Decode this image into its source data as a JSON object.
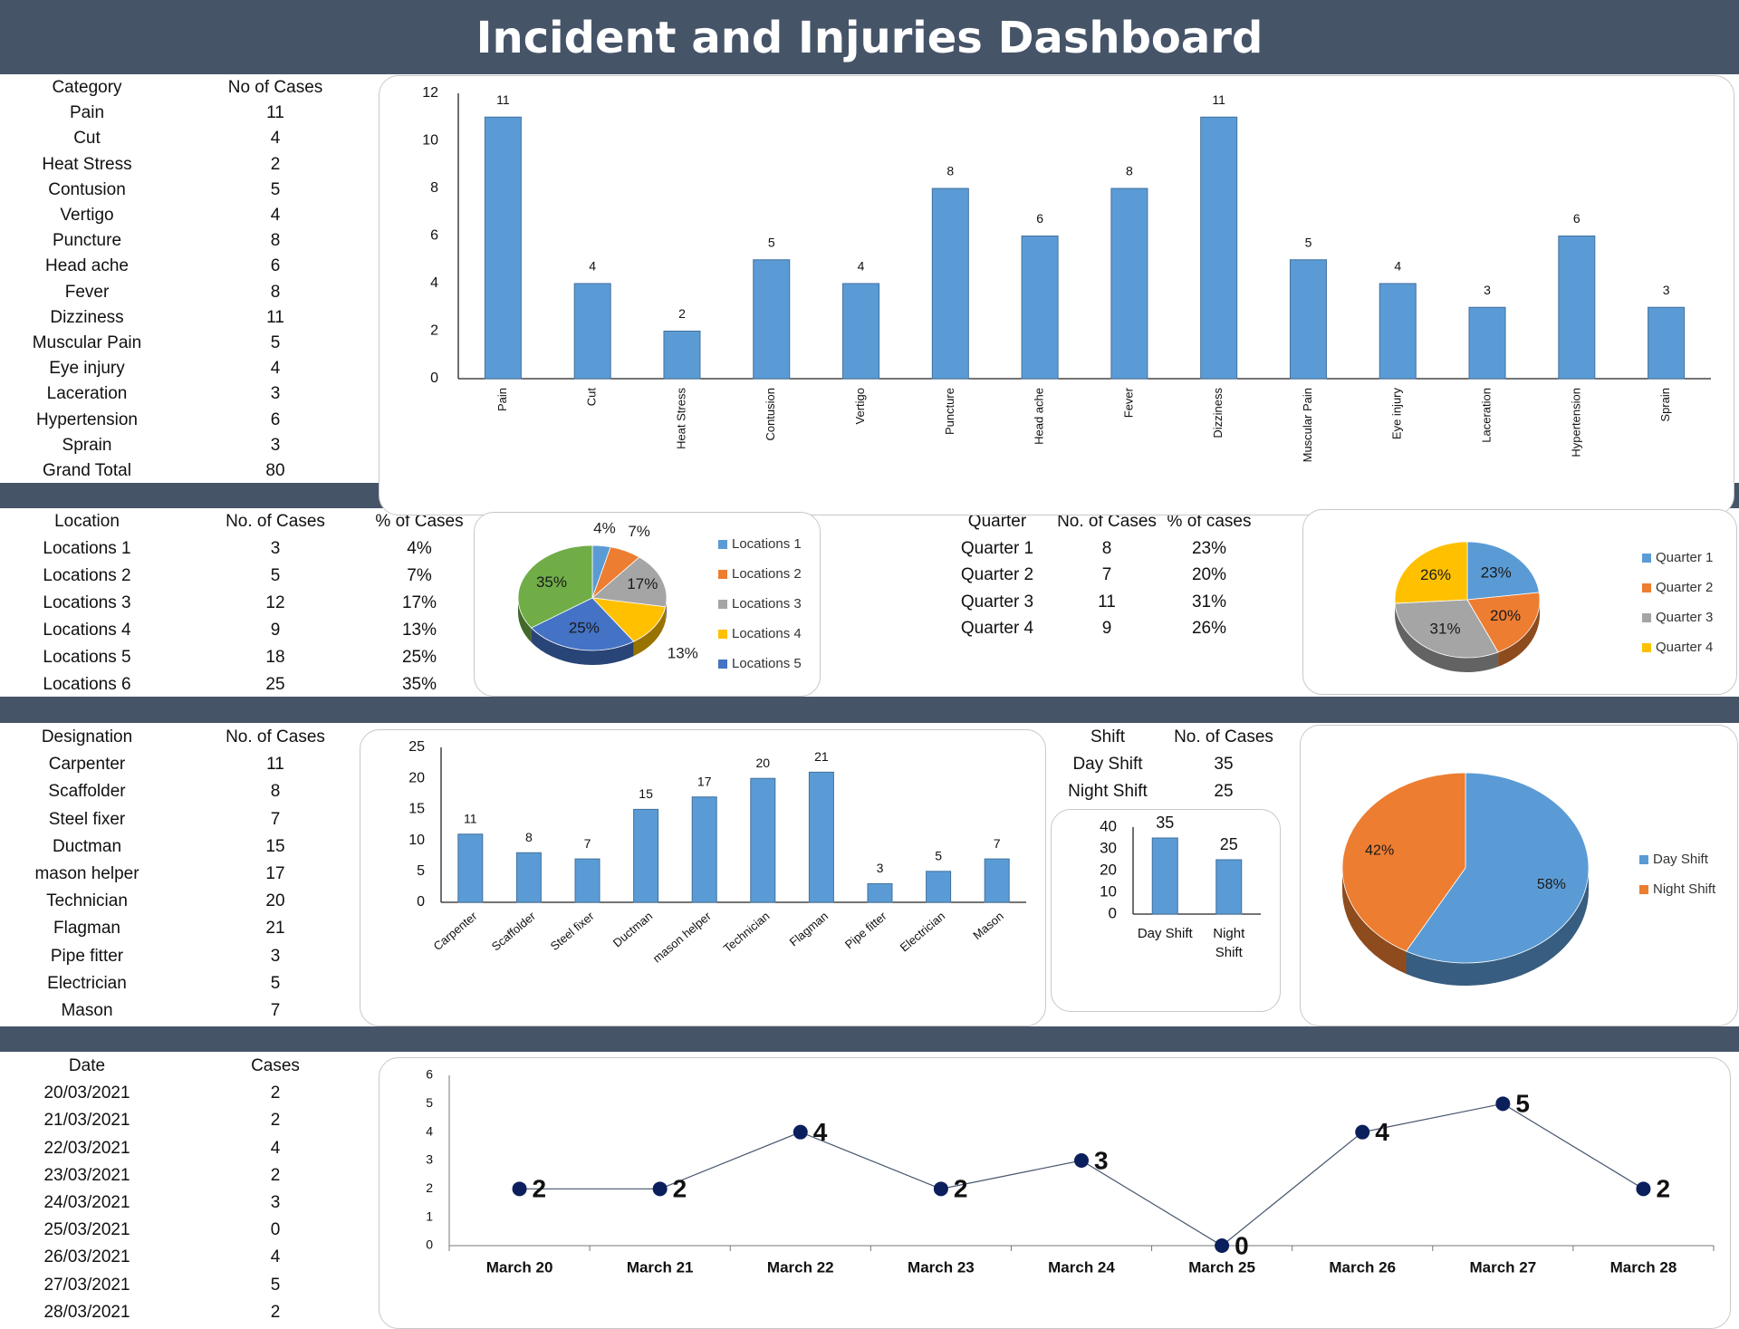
{
  "title": "Incident and Injuries Dashboard",
  "colors": {
    "header": "#465468",
    "bar": "#5b9bd5",
    "line_marker": "#0b1f5c",
    "line": "#44546a"
  },
  "tables": {
    "category": {
      "headers": [
        "Category",
        "No of Cases"
      ],
      "rows": [
        [
          "Pain",
          "11"
        ],
        [
          "Cut",
          "4"
        ],
        [
          "Heat Stress",
          "2"
        ],
        [
          "Contusion",
          "5"
        ],
        [
          "Vertigo",
          "4"
        ],
        [
          "Puncture",
          "8"
        ],
        [
          "Head ache",
          "6"
        ],
        [
          "Fever",
          "8"
        ],
        [
          "Dizziness",
          "11"
        ],
        [
          "Muscular Pain",
          "5"
        ],
        [
          "Eye injury",
          "4"
        ],
        [
          "Laceration",
          "3"
        ],
        [
          "Hypertension",
          "6"
        ],
        [
          "Sprain",
          "3"
        ],
        [
          "Grand Total",
          "80"
        ]
      ]
    },
    "location": {
      "headers": [
        "Location",
        "No. of Cases",
        "% of Cases"
      ],
      "rows": [
        [
          "Locations 1",
          "3",
          "4%"
        ],
        [
          "Locations 2",
          "5",
          "7%"
        ],
        [
          "Locations 3",
          "12",
          "17%"
        ],
        [
          "Locations 4",
          "9",
          "13%"
        ],
        [
          "Locations 5",
          "18",
          "25%"
        ],
        [
          "Locations 6",
          "25",
          "35%"
        ]
      ]
    },
    "quarter": {
      "headers": [
        "Quarter",
        "No. of Cases",
        "% of cases"
      ],
      "rows": [
        [
          "Quarter 1",
          "8",
          "23%"
        ],
        [
          "Quarter 2",
          "7",
          "20%"
        ],
        [
          "Quarter 3",
          "11",
          "31%"
        ],
        [
          "Quarter 4",
          "9",
          "26%"
        ]
      ]
    },
    "designation": {
      "headers": [
        "Designation",
        "No. of Cases"
      ],
      "rows": [
        [
          "Carpenter",
          "11"
        ],
        [
          "Scaffolder",
          "8"
        ],
        [
          "Steel fixer",
          "7"
        ],
        [
          "Ductman",
          "15"
        ],
        [
          "mason helper",
          "17"
        ],
        [
          "Technician",
          "20"
        ],
        [
          "Flagman",
          "21"
        ],
        [
          "Pipe fitter",
          "3"
        ],
        [
          "Electrician",
          "5"
        ],
        [
          "Mason",
          "7"
        ]
      ]
    },
    "shift": {
      "headers": [
        "Shift",
        "No. of Cases"
      ],
      "rows": [
        [
          "Day Shift",
          "35"
        ],
        [
          "Night Shift",
          "25"
        ]
      ]
    },
    "date": {
      "headers": [
        "Date",
        "Cases"
      ],
      "rows": [
        [
          "20/03/2021",
          "2"
        ],
        [
          "21/03/2021",
          "2"
        ],
        [
          "22/03/2021",
          "4"
        ],
        [
          "23/03/2021",
          "2"
        ],
        [
          "24/03/2021",
          "3"
        ],
        [
          "25/03/2021",
          "0"
        ],
        [
          "26/03/2021",
          "4"
        ],
        [
          "27/03/2021",
          "5"
        ],
        [
          "28/03/2021",
          "2"
        ]
      ]
    }
  },
  "chart_data": [
    {
      "id": "category-bar",
      "type": "bar",
      "categories": [
        "Pain",
        "Cut",
        "Heat Stress",
        "Contusion",
        "Vertigo",
        "Puncture",
        "Head ache",
        "Fever",
        "Dizziness",
        "Muscular Pain",
        "Eye injury",
        "Laceration",
        "Hypertension",
        "Sprain"
      ],
      "values": [
        11,
        4,
        2,
        5,
        4,
        8,
        6,
        8,
        11,
        5,
        4,
        3,
        6,
        3
      ],
      "ylim": [
        0,
        12
      ],
      "yticks": [
        "0",
        "2",
        "4",
        "6",
        "8",
        "10",
        "12"
      ],
      "data_labels": true,
      "grid": false
    },
    {
      "id": "location-pie",
      "type": "pie",
      "style": "3d",
      "categories": [
        "Locations 1",
        "Locations 2",
        "Locations 3",
        "Locations 4",
        "Locations 5",
        "Locations 6"
      ],
      "values": [
        4,
        7,
        17,
        13,
        25,
        35
      ],
      "labels": [
        "4%",
        "7%",
        "17%",
        "13%",
        "25%",
        "35%"
      ],
      "colors": [
        "#5b9bd5",
        "#ed7d31",
        "#a5a5a5",
        "#ffc000",
        "#4472c4",
        "#70ad47"
      ],
      "legend": [
        "Locations 1",
        "Locations 2",
        "Locations 3",
        "Locations 4",
        "Locations 5"
      ],
      "legend_position": "right"
    },
    {
      "id": "quarter-pie",
      "type": "pie",
      "style": "3d",
      "categories": [
        "Quarter 1",
        "Quarter 2",
        "Quarter 3",
        "Quarter 4"
      ],
      "values": [
        23,
        20,
        31,
        26
      ],
      "labels": [
        "23%",
        "20%",
        "31%",
        "26%"
      ],
      "colors": [
        "#5b9bd5",
        "#ed7d31",
        "#a5a5a5",
        "#ffc000"
      ],
      "legend": [
        "Quarter 1",
        "Quarter 2",
        "Quarter 3",
        "Quarter 4"
      ],
      "legend_position": "right"
    },
    {
      "id": "designation-bar",
      "type": "bar",
      "categories": [
        "Carpenter",
        "Scaffolder",
        "Steel fixer",
        "Ductman",
        "mason helper",
        "Technician",
        "Flagman",
        "Pipe fitter",
        "Electrician",
        "Mason"
      ],
      "values": [
        11,
        8,
        7,
        15,
        17,
        20,
        21,
        3,
        5,
        7
      ],
      "ylim": [
        0,
        25
      ],
      "yticks": [
        "0",
        "5",
        "10",
        "15",
        "20",
        "25"
      ],
      "data_labels": true,
      "grid": false
    },
    {
      "id": "shift-bar",
      "type": "bar",
      "categories": [
        "Day Shift",
        "Night Shift"
      ],
      "values": [
        35,
        25
      ],
      "ylim": [
        0,
        40
      ],
      "yticks": [
        "0",
        "10",
        "20",
        "30",
        "40"
      ],
      "data_labels": true,
      "grid": false
    },
    {
      "id": "shift-pie",
      "type": "pie",
      "style": "3d",
      "categories": [
        "Day Shift",
        "Night Shift"
      ],
      "values": [
        58,
        42
      ],
      "labels": [
        "58%",
        "42%"
      ],
      "colors": [
        "#5b9bd5",
        "#ed7d31"
      ],
      "legend": [
        "Day Shift",
        "Night Shift"
      ],
      "legend_position": "right"
    },
    {
      "id": "date-line",
      "type": "line",
      "categories": [
        "March 20",
        "March 21",
        "March 22",
        "March 23",
        "March 24",
        "March 25",
        "March 26",
        "March 27",
        "March 28"
      ],
      "values": [
        2,
        2,
        4,
        2,
        3,
        0,
        4,
        5,
        2
      ],
      "ylim": [
        0,
        6
      ],
      "yticks": [
        "0",
        "1",
        "2",
        "3",
        "4",
        "5",
        "6"
      ],
      "data_labels": true,
      "grid": false
    }
  ]
}
